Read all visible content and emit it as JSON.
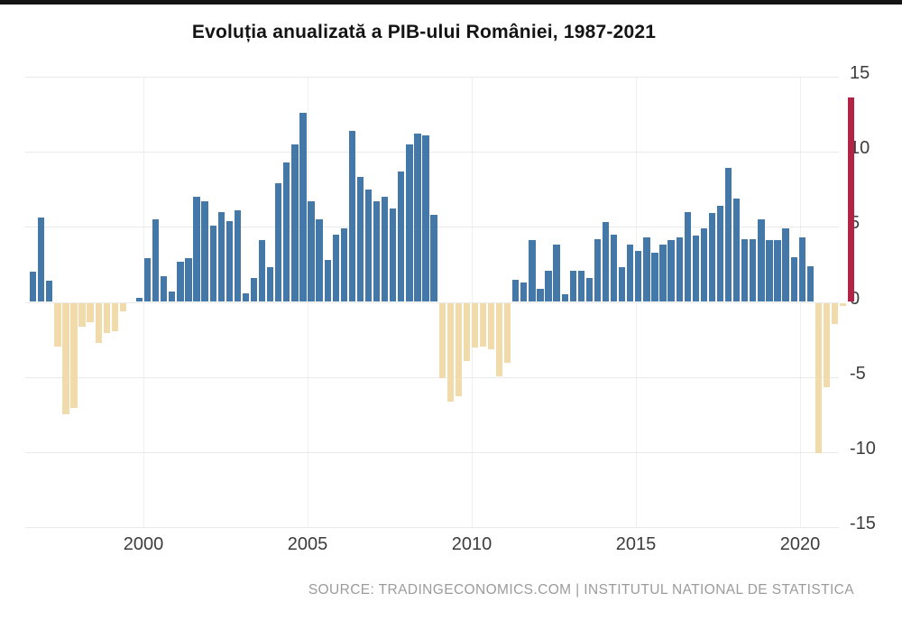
{
  "chart_data": {
    "type": "bar",
    "title": "Evoluția anualizată a PIB-ului României, 1987-2021",
    "bar_period": "quarterly",
    "x_tick_labels": [
      "2000",
      "2005",
      "2010",
      "2015",
      "2020"
    ],
    "y_ticks": [
      15,
      10,
      5,
      0,
      -5,
      -10,
      -15
    ],
    "ylim": [
      -15,
      15
    ],
    "grid": true,
    "legend_position": "none",
    "values": [
      2.0,
      5.6,
      1.4,
      -2.9,
      -7.4,
      -7.0,
      -1.6,
      -1.3,
      -2.7,
      -2.0,
      -1.9,
      -0.6,
      0.0,
      0.3,
      2.9,
      5.5,
      1.7,
      0.7,
      2.7,
      2.9,
      7.0,
      6.7,
      5.1,
      6.0,
      5.4,
      6.1,
      0.6,
      1.6,
      4.1,
      2.3,
      7.9,
      9.3,
      10.5,
      12.6,
      6.7,
      5.5,
      2.8,
      4.5,
      4.9,
      11.4,
      8.3,
      7.5,
      6.7,
      7.0,
      6.2,
      8.7,
      10.5,
      11.2,
      11.1,
      5.8,
      -5.0,
      -6.6,
      -6.2,
      -3.9,
      -3.0,
      -2.9,
      -3.1,
      -4.9,
      -4.0,
      1.5,
      1.3,
      4.1,
      0.9,
      2.1,
      3.8,
      0.5,
      2.1,
      2.1,
      1.6,
      4.2,
      5.3,
      4.5,
      2.3,
      3.8,
      3.4,
      4.3,
      3.3,
      3.8,
      4.1,
      4.3,
      6.0,
      4.4,
      4.9,
      5.9,
      6.4,
      8.9,
      6.9,
      4.2,
      4.2,
      5.5,
      4.1,
      4.1,
      4.9,
      3.0,
      4.3,
      2.4,
      -10.0,
      -5.6,
      -1.4,
      -0.2,
      13.6
    ],
    "latest_value": 13.6,
    "colors": {
      "positive": "#4478a8",
      "negative": "#f1dbaa",
      "latest": "#b22345",
      "gridline": "#e9e9e9",
      "gridline_vertical": "#efefef",
      "axis_text": "#3c3c3c"
    }
  },
  "source": {
    "text": "SOURCE: TRADINGECONOMICS.COM | INSTITUTUL NATIONAL DE STATISTICA"
  }
}
